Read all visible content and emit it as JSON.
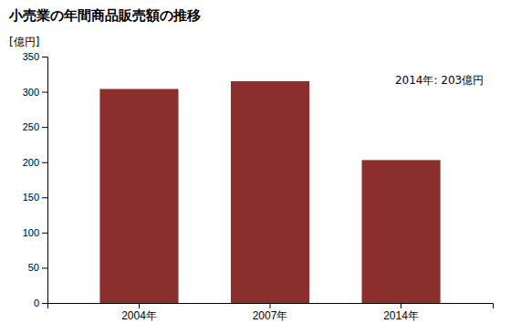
{
  "chart_data": {
    "type": "bar",
    "title": "小売業の年間商品販売額の推移",
    "ylabel": "[億円]",
    "categories": [
      "2004年",
      "2007年",
      "2014年"
    ],
    "values": [
      304,
      315,
      203
    ],
    "color": "#8B2E2E",
    "annotation": "2014年: 203億円",
    "ylim": [
      0,
      350
    ],
    "yticks": [
      0,
      50,
      100,
      150,
      200,
      250,
      300,
      350
    ],
    "grid": false
  }
}
